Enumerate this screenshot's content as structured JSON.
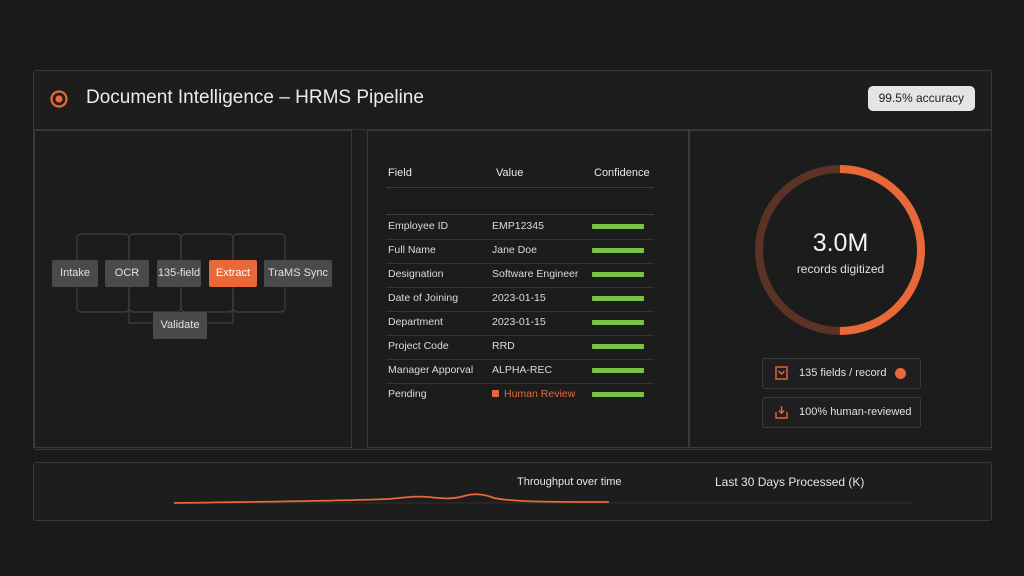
{
  "header": {
    "title": "Document Intelligence – HRMS Pipeline",
    "accuracy_badge": "99.5% accuracy",
    "logo_icon": "target-logo-icon"
  },
  "pipeline": {
    "nodes": [
      "Intake",
      "OCR",
      "135-field",
      "Extract",
      "TraMS Sync",
      "Validate"
    ],
    "active_node": "Extract"
  },
  "extraction_table": {
    "columns": [
      "Field",
      "Value",
      "Confidence"
    ],
    "rows": [
      {
        "field": "Employee ID",
        "value": "EMP12345",
        "confidence": 1.0
      },
      {
        "field": "Full Name",
        "value": "Jane Doe",
        "confidence": 1.0
      },
      {
        "field": "Designation",
        "value": "Software Engineer",
        "confidence": 1.0
      },
      {
        "field": "Date of Joining",
        "value": "2023-01-15",
        "confidence": 1.0
      },
      {
        "field": "Department",
        "value": "2023-01-15",
        "confidence": 1.0
      },
      {
        "field": "Project Code",
        "value": "RRD",
        "confidence": 1.0
      },
      {
        "field": "Manager Apporval",
        "value": "ALPHA-REC",
        "confidence": 1.0
      },
      {
        "field": "Pending",
        "value": "Human Review",
        "confidence": 1.0
      }
    ]
  },
  "summary": {
    "records_value": "3.0M",
    "records_label": "records digitized",
    "donut_fraction": 0.5,
    "chips": [
      {
        "label": "135 fields / record",
        "icon": "document-icon"
      },
      {
        "label": "100% human-reviewed",
        "icon": "inbox-check-icon"
      }
    ]
  },
  "throughput": {
    "title": "Throughput over time",
    "legend": "Last 30 Days Processed (K)"
  },
  "colors": {
    "accent": "#e8683a",
    "confidence_bar": "#7cc242",
    "donut_track": "#5a3226"
  }
}
